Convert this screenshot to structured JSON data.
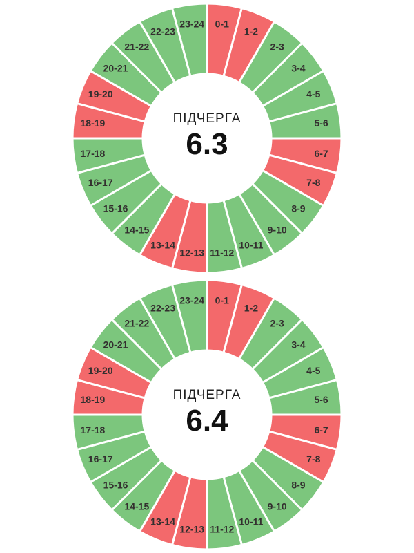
{
  "colors": {
    "green": "#7CC67D",
    "red": "#F3696B",
    "separator": "#FFFFFF",
    "segment_label": "#332F2F",
    "center_text": "#111111"
  },
  "chart_data": [
    {
      "type": "pie",
      "donut": true,
      "title": "ПІДЧЕРГА",
      "center_value": "6.3",
      "start_angle_deg": 0,
      "direction": "clockwise",
      "slice_deg": 15,
      "categories": [
        "0-1",
        "1-2",
        "2-3",
        "3-4",
        "4-5",
        "5-6",
        "6-7",
        "7-8",
        "8-9",
        "9-10",
        "10-11",
        "11-12",
        "12-13",
        "13-14",
        "14-15",
        "15-16",
        "16-17",
        "17-18",
        "18-19",
        "19-20",
        "20-21",
        "21-22",
        "22-23",
        "23-24"
      ],
      "values": [
        1,
        1,
        1,
        1,
        1,
        1,
        1,
        1,
        1,
        1,
        1,
        1,
        1,
        1,
        1,
        1,
        1,
        1,
        1,
        1,
        1,
        1,
        1,
        1
      ],
      "segment_colors": [
        "red",
        "red",
        "green",
        "green",
        "green",
        "green",
        "red",
        "red",
        "green",
        "green",
        "green",
        "green",
        "red",
        "red",
        "green",
        "green",
        "green",
        "green",
        "red",
        "red",
        "green",
        "green",
        "green",
        "green"
      ]
    },
    {
      "type": "pie",
      "donut": true,
      "title": "ПІДЧЕРГА",
      "center_value": "6.4",
      "start_angle_deg": 0,
      "direction": "clockwise",
      "slice_deg": 15,
      "categories": [
        "0-1",
        "1-2",
        "2-3",
        "3-4",
        "4-5",
        "5-6",
        "6-7",
        "7-8",
        "8-9",
        "9-10",
        "10-11",
        "11-12",
        "12-13",
        "13-14",
        "14-15",
        "15-16",
        "16-17",
        "17-18",
        "18-19",
        "19-20",
        "20-21",
        "21-22",
        "22-23",
        "23-24"
      ],
      "values": [
        1,
        1,
        1,
        1,
        1,
        1,
        1,
        1,
        1,
        1,
        1,
        1,
        1,
        1,
        1,
        1,
        1,
        1,
        1,
        1,
        1,
        1,
        1,
        1
      ],
      "segment_colors": [
        "red",
        "red",
        "green",
        "green",
        "green",
        "green",
        "red",
        "red",
        "green",
        "green",
        "green",
        "green",
        "red",
        "red",
        "green",
        "green",
        "green",
        "green",
        "red",
        "red",
        "green",
        "green",
        "green",
        "green"
      ]
    }
  ]
}
